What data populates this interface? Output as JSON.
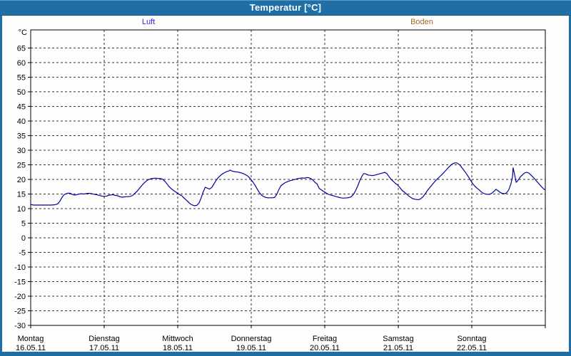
{
  "window": {
    "title": "Temperatur [°C]"
  },
  "colors": {
    "window_blue": "#1f6fa6",
    "title_text": "#ffffff",
    "luft": "#2a2ad4",
    "boden": "#9a6a28",
    "grid": "#333333",
    "plot_background": "#ffffff"
  },
  "legend": [
    {
      "label": "Luft",
      "color": "#2a2ad4"
    },
    {
      "label": "Boden",
      "color": "#9a6a28"
    }
  ],
  "chart_data": {
    "type": "line",
    "title": "Temperatur [°C]",
    "y_unit": "°C",
    "ylabel": "Temperatur",
    "xlabel": "",
    "grid": true,
    "legend_position": "top",
    "ylim": [
      -30,
      71.2
    ],
    "y_ticks": [
      65,
      60,
      55,
      50,
      45,
      40,
      35,
      30,
      25,
      20,
      15,
      10,
      5,
      0,
      -5,
      -10,
      -15,
      -20,
      -25,
      -30
    ],
    "x_total_hours": 168,
    "x_days": [
      {
        "name": "Montag",
        "date": "16.05.11"
      },
      {
        "name": "Dienstag",
        "date": "17.05.11"
      },
      {
        "name": "Mittwoch",
        "date": "18.05.11"
      },
      {
        "name": "Donnerstag",
        "date": "19.05.11"
      },
      {
        "name": "Freitag",
        "date": "20.05.11"
      },
      {
        "name": "Samstag",
        "date": "21.05.11"
      },
      {
        "name": "Sonntag",
        "date": "22.05.11"
      }
    ],
    "series": [
      {
        "name": "Luft",
        "color": "#00009b",
        "points": [
          [
            0,
            11.4
          ],
          [
            0.9,
            11.2
          ],
          [
            2.3,
            11.2
          ],
          [
            3.7,
            11.2
          ],
          [
            5.1,
            11.2
          ],
          [
            6.5,
            11.2
          ],
          [
            7.9,
            11.3
          ],
          [
            8.8,
            11.6
          ],
          [
            9.5,
            12.5
          ],
          [
            10.2,
            13.8
          ],
          [
            10.9,
            14.8
          ],
          [
            11.6,
            15.1
          ],
          [
            12.3,
            15.3
          ],
          [
            13,
            15.2
          ],
          [
            13.7,
            14.8
          ],
          [
            14.4,
            14.6
          ],
          [
            15.1,
            14.8
          ],
          [
            15.8,
            15
          ],
          [
            16.5,
            15.1
          ],
          [
            17.2,
            15
          ],
          [
            17.9,
            15.1
          ],
          [
            18.6,
            15.2
          ],
          [
            19.3,
            15.2
          ],
          [
            20,
            15.1
          ],
          [
            20.7,
            14.9
          ],
          [
            21.4,
            14.8
          ],
          [
            22.1,
            14.6
          ],
          [
            22.8,
            14.4
          ],
          [
            23.5,
            14.2
          ],
          [
            24.2,
            14.2
          ],
          [
            24.9,
            14.3
          ],
          [
            25.6,
            14.6
          ],
          [
            26.3,
            14.7
          ],
          [
            27,
            14.7
          ],
          [
            27.7,
            14.5
          ],
          [
            28.4,
            14.4
          ],
          [
            29.1,
            14.1
          ],
          [
            29.8,
            13.9
          ],
          [
            30.5,
            14
          ],
          [
            31.2,
            14.1
          ],
          [
            31.9,
            14.1
          ],
          [
            32.6,
            14.2
          ],
          [
            33.3,
            14.5
          ],
          [
            34,
            15.2
          ],
          [
            34.7,
            15.9
          ],
          [
            35.4,
            16.8
          ],
          [
            36.1,
            17.7
          ],
          [
            36.8,
            18.5
          ],
          [
            37.5,
            19.2
          ],
          [
            38.2,
            19.8
          ],
          [
            38.9,
            20.1
          ],
          [
            39.6,
            20.3
          ],
          [
            40.3,
            20.4
          ],
          [
            40.9,
            20.4
          ],
          [
            41.6,
            20.3
          ],
          [
            42.3,
            20.3
          ],
          [
            43,
            20.1
          ],
          [
            43.7,
            19.5
          ],
          [
            44.4,
            18.6
          ],
          [
            45.1,
            17.6
          ],
          [
            45.8,
            16.9
          ],
          [
            46.5,
            16.3
          ],
          [
            47.2,
            15.8
          ],
          [
            47.9,
            15.3
          ],
          [
            48.6,
            14.8
          ],
          [
            49.3,
            14.4
          ],
          [
            50,
            13.7
          ],
          [
            50.7,
            13
          ],
          [
            51.4,
            12.3
          ],
          [
            52.1,
            11.6
          ],
          [
            52.8,
            11.2
          ],
          [
            53.5,
            11
          ],
          [
            54.2,
            11.1
          ],
          [
            54.9,
            11.8
          ],
          [
            55.6,
            13.5
          ],
          [
            56.3,
            15.7
          ],
          [
            57,
            17.3
          ],
          [
            57.7,
            17
          ],
          [
            58.4,
            16.7
          ],
          [
            59.1,
            17.2
          ],
          [
            59.8,
            18.4
          ],
          [
            60.5,
            19.6
          ],
          [
            61.2,
            20.6
          ],
          [
            61.9,
            21.3
          ],
          [
            62.6,
            21.9
          ],
          [
            63.3,
            22.3
          ],
          [
            64,
            22.7
          ],
          [
            64.7,
            22.9
          ],
          [
            65.1,
            23.2
          ],
          [
            65.6,
            22.9
          ],
          [
            66.3,
            22.7
          ],
          [
            67,
            22.6
          ],
          [
            67.7,
            22.5
          ],
          [
            68.4,
            22.3
          ],
          [
            69.1,
            22.1
          ],
          [
            69.8,
            21.8
          ],
          [
            70.5,
            21.4
          ],
          [
            71.2,
            20.8
          ],
          [
            71.9,
            20
          ],
          [
            72.6,
            19
          ],
          [
            73.3,
            17.9
          ],
          [
            74,
            16.6
          ],
          [
            74.7,
            15.4
          ],
          [
            75.4,
            14.6
          ],
          [
            76.1,
            14.1
          ],
          [
            76.8,
            13.8
          ],
          [
            77.5,
            13.7
          ],
          [
            78.2,
            13.7
          ],
          [
            78.9,
            13.7
          ],
          [
            79.6,
            13.8
          ],
          [
            80.3,
            14.8
          ],
          [
            81,
            16.5
          ],
          [
            81.7,
            17.8
          ],
          [
            82.4,
            18.4
          ],
          [
            83.1,
            18.9
          ],
          [
            83.8,
            19.2
          ],
          [
            84.5,
            19.5
          ],
          [
            85.2,
            19.7
          ],
          [
            85.9,
            19.9
          ],
          [
            86.6,
            20.1
          ],
          [
            87.3,
            20.3
          ],
          [
            88,
            20.4
          ],
          [
            88.6,
            20.5
          ],
          [
            89.3,
            20.4
          ],
          [
            90,
            20.6
          ],
          [
            90.7,
            20.6
          ],
          [
            91.4,
            20.3
          ],
          [
            92.1,
            19.8
          ],
          [
            92.8,
            19
          ],
          [
            93.5,
            18.4
          ],
          [
            94.2,
            16.9
          ],
          [
            94.9,
            16.4
          ],
          [
            95.6,
            15.9
          ],
          [
            96.3,
            15.4
          ],
          [
            97,
            15
          ],
          [
            97.7,
            14.7
          ],
          [
            98.4,
            14.5
          ],
          [
            99.1,
            14.3
          ],
          [
            99.8,
            14.1
          ],
          [
            100.5,
            13.9
          ],
          [
            101.2,
            13.7
          ],
          [
            101.9,
            13.6
          ],
          [
            102.6,
            13.6
          ],
          [
            103.3,
            13.7
          ],
          [
            104,
            13.8
          ],
          [
            104.7,
            14.1
          ],
          [
            105.4,
            14.9
          ],
          [
            106.1,
            16.2
          ],
          [
            106.8,
            17.8
          ],
          [
            107.5,
            19.8
          ],
          [
            108.2,
            21.2
          ],
          [
            108.7,
            22
          ],
          [
            109.4,
            21.9
          ],
          [
            110.1,
            21.5
          ],
          [
            110.8,
            21.4
          ],
          [
            111.5,
            21.3
          ],
          [
            112.2,
            21.4
          ],
          [
            112.8,
            21.6
          ],
          [
            113.5,
            21.8
          ],
          [
            114.2,
            22
          ],
          [
            114.9,
            22.2
          ],
          [
            115.6,
            22.4
          ],
          [
            116.3,
            22
          ],
          [
            117,
            20.9
          ],
          [
            117.7,
            20
          ],
          [
            118.4,
            19.3
          ],
          [
            119.1,
            18.6
          ],
          [
            119.8,
            18.1
          ],
          [
            120.5,
            17.2
          ],
          [
            121.2,
            16.3
          ],
          [
            121.9,
            15.7
          ],
          [
            122.6,
            15.1
          ],
          [
            123.3,
            14.4
          ],
          [
            124,
            13.9
          ],
          [
            124.7,
            13.4
          ],
          [
            125.4,
            13.2
          ],
          [
            126.1,
            13.1
          ],
          [
            126.8,
            13.1
          ],
          [
            127.5,
            13.5
          ],
          [
            128.2,
            14.2
          ],
          [
            128.9,
            15.2
          ],
          [
            129.6,
            16.3
          ],
          [
            130.3,
            17.2
          ],
          [
            131,
            18.1
          ],
          [
            131.7,
            19
          ],
          [
            132.4,
            19.8
          ],
          [
            133.1,
            20.5
          ],
          [
            133.8,
            21.2
          ],
          [
            134.5,
            21.9
          ],
          [
            135.2,
            22.7
          ],
          [
            135.9,
            23.5
          ],
          [
            136.6,
            24.3
          ],
          [
            137.3,
            25
          ],
          [
            138,
            25.5
          ],
          [
            138.7,
            25.7
          ],
          [
            139.4,
            25.5
          ],
          [
            140.1,
            24.9
          ],
          [
            140.8,
            24
          ],
          [
            141.5,
            23
          ],
          [
            142.2,
            22
          ],
          [
            142.9,
            20.9
          ],
          [
            143.6,
            19.7
          ],
          [
            144.3,
            18.5
          ],
          [
            145,
            17.7
          ],
          [
            145.7,
            17
          ],
          [
            146.4,
            16.4
          ],
          [
            147,
            15.8
          ],
          [
            147.7,
            15.3
          ],
          [
            148.4,
            15
          ],
          [
            149.1,
            14.9
          ],
          [
            149.8,
            14.9
          ],
          [
            150.5,
            15.2
          ],
          [
            151.2,
            15.9
          ],
          [
            151.9,
            16.6
          ],
          [
            152.6,
            16.1
          ],
          [
            153.3,
            15.5
          ],
          [
            154,
            15.2
          ],
          [
            154.7,
            15.1
          ],
          [
            155.4,
            15.4
          ],
          [
            156.1,
            16.5
          ],
          [
            156.8,
            18.5
          ],
          [
            157.3,
            21
          ],
          [
            157.5,
            24
          ],
          [
            158,
            21.5
          ],
          [
            158.5,
            19
          ],
          [
            159.2,
            19.8
          ],
          [
            159.8,
            20.8
          ],
          [
            160.5,
            21.5
          ],
          [
            161.2,
            22.2
          ],
          [
            161.9,
            22.4
          ],
          [
            162.6,
            22.2
          ],
          [
            163.3,
            21.5
          ],
          [
            164,
            20.8
          ],
          [
            164.7,
            20
          ],
          [
            165.4,
            19.1
          ],
          [
            166.1,
            18.3
          ],
          [
            166.8,
            17.4
          ],
          [
            167.5,
            16.7
          ],
          [
            168,
            16.4
          ]
        ]
      },
      {
        "name": "Boden",
        "color": "#9a6a28",
        "points": []
      }
    ]
  }
}
